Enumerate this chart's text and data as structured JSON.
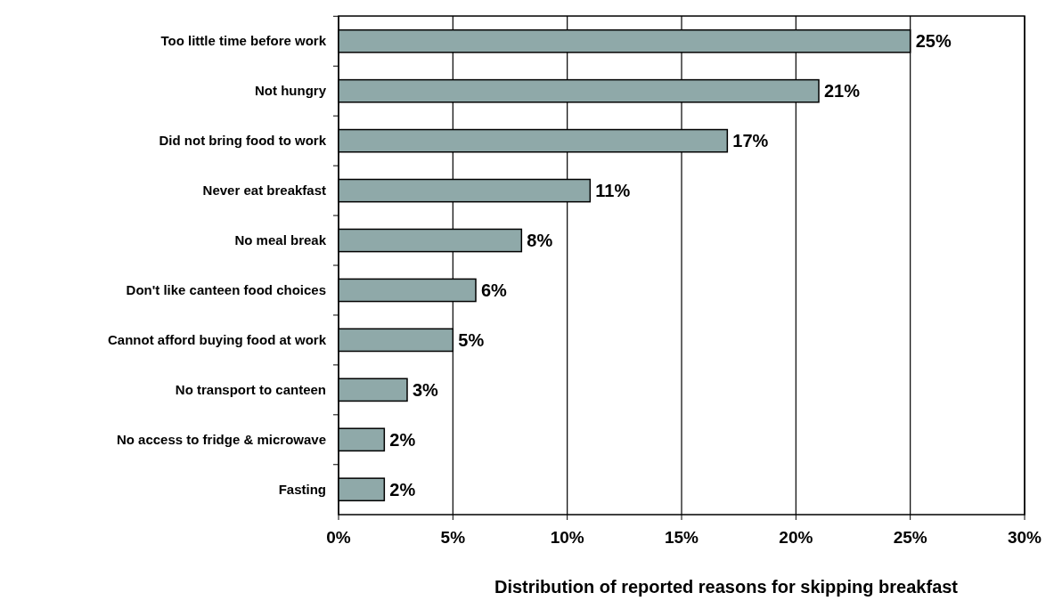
{
  "chart_data": {
    "type": "bar",
    "orientation": "horizontal",
    "xlabel": "Distribution of reported reasons for skipping breakfast",
    "categories": [
      "Too little time before work",
      "Not hungry",
      "Did not bring food to work",
      "Never eat breakfast",
      "No meal break",
      "Don't like canteen food choices",
      "Cannot afford buying food at work",
      "No transport to canteen",
      "No access to fridge & microwave",
      "Fasting"
    ],
    "values": [
      25,
      21,
      17,
      11,
      8,
      6,
      5,
      3,
      2,
      2
    ],
    "value_labels": [
      "25%",
      "21%",
      "17%",
      "11%",
      "8%",
      "6%",
      "5%",
      "3%",
      "2%",
      "2%"
    ],
    "color": "#8fa9a9",
    "xlim": [
      0,
      30
    ],
    "xticks": [
      {
        "value": 0,
        "label": "0%"
      },
      {
        "value": 5,
        "label": "5%"
      },
      {
        "value": 10,
        "label": "10%"
      },
      {
        "value": 15,
        "label": "15%"
      },
      {
        "value": 20,
        "label": "20%"
      },
      {
        "value": 25,
        "label": "25%"
      },
      {
        "value": 30,
        "label": "30%"
      }
    ],
    "grid": "x"
  }
}
